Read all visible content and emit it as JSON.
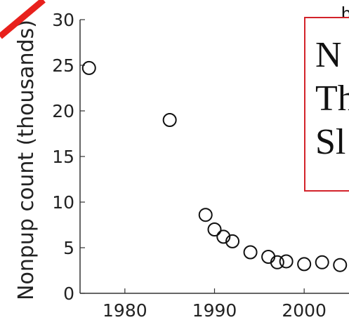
{
  "chart_data": {
    "type": "scatter",
    "ylabel": "Nonpup count (thousands)",
    "xlim": [
      1975,
      2005
    ],
    "ylim": [
      0,
      30
    ],
    "x_ticks": [
      "1980",
      "1990",
      "2000"
    ],
    "y_ticks": [
      "0",
      "5",
      "10",
      "15",
      "20",
      "25",
      "30"
    ],
    "points": [
      {
        "x": 1976,
        "y": 24.7
      },
      {
        "x": 1985,
        "y": 19.0
      },
      {
        "x": 1989,
        "y": 8.6
      },
      {
        "x": 1990,
        "y": 7.0
      },
      {
        "x": 1991,
        "y": 6.2
      },
      {
        "x": 1992,
        "y": 5.7
      },
      {
        "x": 1994,
        "y": 4.5
      },
      {
        "x": 1996,
        "y": 4.0
      },
      {
        "x": 1997,
        "y": 3.4
      },
      {
        "x": 1998,
        "y": 3.5
      },
      {
        "x": 2000,
        "y": 3.2
      },
      {
        "x": 2002,
        "y": 3.4
      },
      {
        "x": 2004,
        "y": 3.1
      }
    ],
    "grid": false
  },
  "overlay": {
    "lines": [
      "N",
      "Th",
      "Sl"
    ],
    "top_text": "b"
  },
  "colors": {
    "overlay_border": "#d3232a",
    "slash": "#e8201c"
  }
}
